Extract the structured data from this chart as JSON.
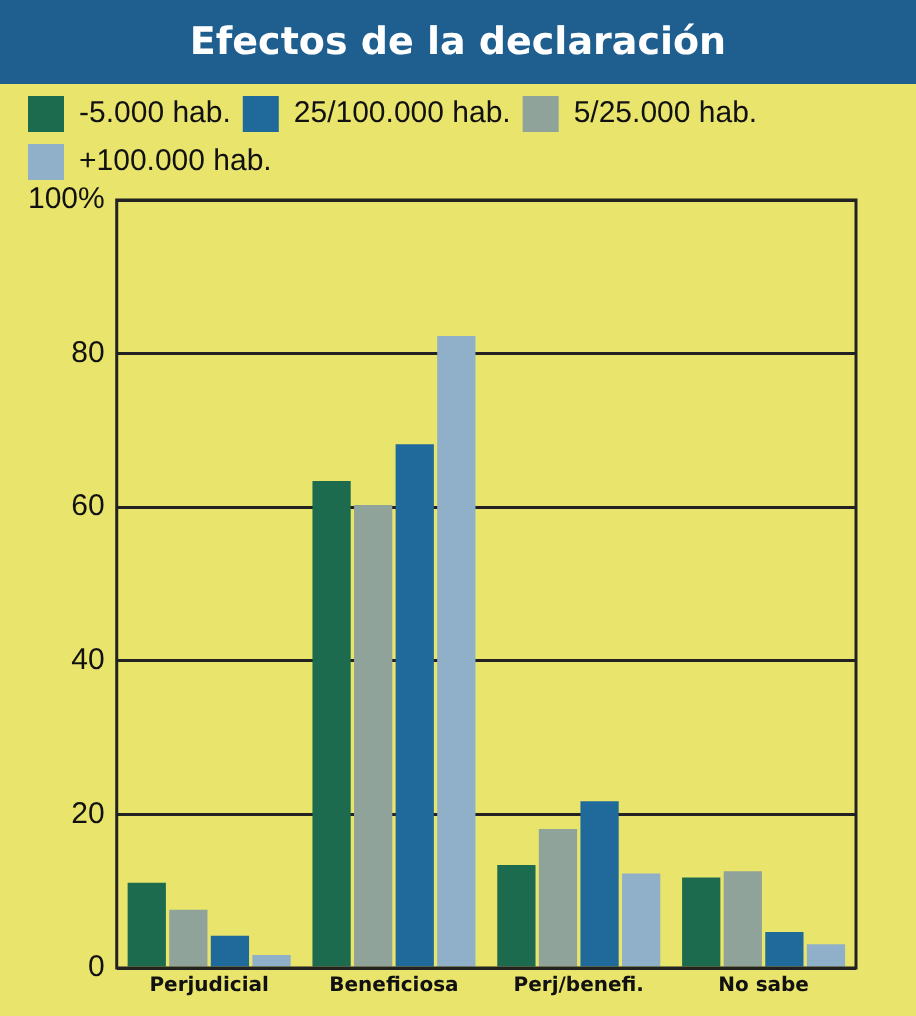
{
  "chart_data": {
    "type": "bar",
    "title": "Efectos de la declaración",
    "categories": [
      "Perjudicial",
      "Beneficiosa",
      "Perj/benefi.",
      "No sabe"
    ],
    "series": [
      {
        "name": "-5.000 hab.",
        "color": "#1d6b4e",
        "values": [
          11.1,
          63.4,
          13.4,
          11.8
        ]
      },
      {
        "name": "5/25.000 hab.",
        "color": "#8fa39a",
        "values": [
          7.6,
          60.3,
          18.1,
          12.6
        ]
      },
      {
        "name": "25/100.000 hab.",
        "color": "#1f6a9a",
        "values": [
          4.2,
          68.2,
          21.7,
          4.7
        ]
      },
      {
        "name": "+100.000 hab.",
        "color": "#8fb0c8",
        "values": [
          1.7,
          82.3,
          12.3,
          3.1
        ]
      }
    ],
    "ylim": [
      0,
      100
    ],
    "yticks": [
      0,
      20,
      40,
      60,
      80,
      {
        "value": 100,
        "label": "100%"
      }
    ],
    "grid": "y",
    "legend": "top"
  }
}
